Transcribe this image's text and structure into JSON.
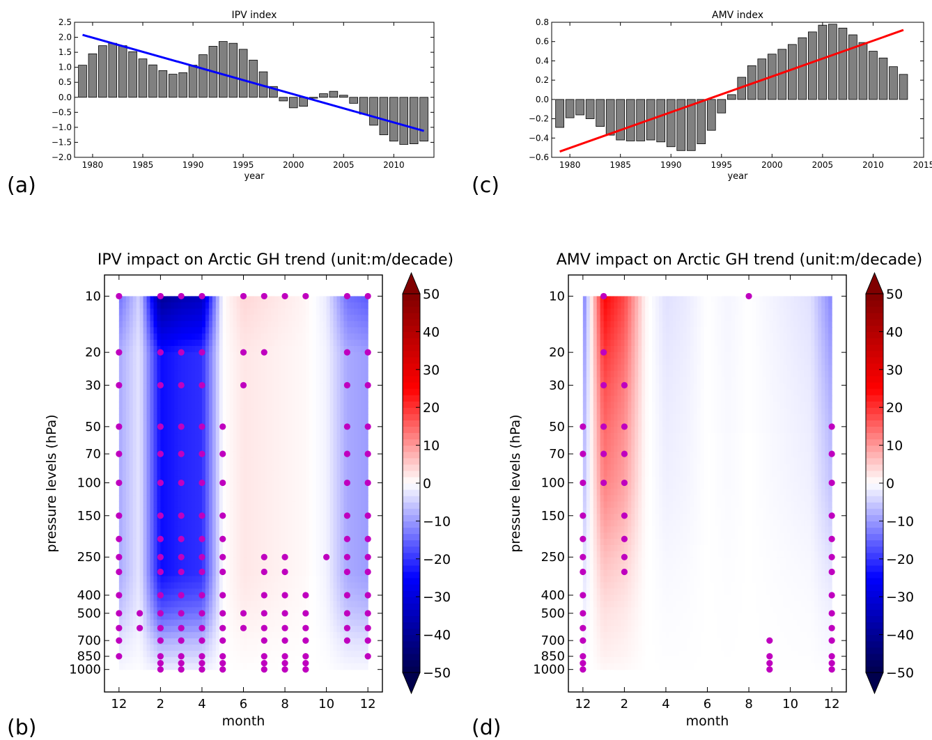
{
  "chart_data": [
    {
      "type": "bar",
      "panel_label": "(a)",
      "title": "IPV index",
      "xlabel": "year",
      "ylabel": "",
      "xlim": [
        1978.2,
        2014
      ],
      "ylim": [
        -2.0,
        2.5
      ],
      "xticks": [
        1980,
        1985,
        1990,
        1995,
        2000,
        2005,
        2010
      ],
      "yticks": [
        -2.0,
        -1.5,
        -1.0,
        -0.5,
        0.0,
        0.5,
        1.0,
        1.5,
        2.0,
        2.5
      ],
      "x": [
        1979,
        1980,
        1981,
        1982,
        1983,
        1984,
        1985,
        1986,
        1987,
        1988,
        1989,
        1990,
        1991,
        1992,
        1993,
        1994,
        1995,
        1996,
        1997,
        1998,
        1999,
        2000,
        2001,
        2002,
        2003,
        2004,
        2005,
        2006,
        2007,
        2008,
        2009,
        2010,
        2011,
        2012,
        2013
      ],
      "values": [
        1.07,
        1.45,
        1.72,
        1.8,
        1.72,
        1.52,
        1.28,
        1.08,
        0.89,
        0.77,
        0.82,
        1.07,
        1.42,
        1.7,
        1.86,
        1.8,
        1.6,
        1.24,
        0.85,
        0.36,
        -0.12,
        -0.35,
        -0.3,
        -0.03,
        0.12,
        0.2,
        0.07,
        -0.2,
        -0.56,
        -0.93,
        -1.25,
        -1.46,
        -1.57,
        -1.55,
        -1.46
      ],
      "bar_color": "#808080",
      "trend": {
        "x": [
          1979,
          2013
        ],
        "y": [
          2.08,
          -1.12
        ],
        "color": "#0000ff"
      },
      "grid": false
    },
    {
      "type": "bar",
      "panel_label": "(c)",
      "title": "AMV index",
      "xlabel": "year",
      "ylabel": "",
      "xlim": [
        1978.2,
        2015
      ],
      "ylim": [
        -0.6,
        0.8
      ],
      "xticks": [
        1980,
        1985,
        1990,
        1995,
        2000,
        2005,
        2010,
        2015
      ],
      "yticks": [
        -0.6,
        -0.4,
        -0.2,
        0.0,
        0.2,
        0.4,
        0.6,
        0.8
      ],
      "x": [
        1979,
        1980,
        1981,
        1982,
        1983,
        1984,
        1985,
        1986,
        1987,
        1988,
        1989,
        1990,
        1991,
        1992,
        1993,
        1994,
        1995,
        1996,
        1997,
        1998,
        1999,
        2000,
        2001,
        2002,
        2003,
        2004,
        2005,
        2006,
        2007,
        2008,
        2009,
        2010,
        2011,
        2012,
        2013
      ],
      "values": [
        -0.29,
        -0.19,
        -0.16,
        -0.2,
        -0.28,
        -0.37,
        -0.42,
        -0.43,
        -0.43,
        -0.42,
        -0.44,
        -0.49,
        -0.53,
        -0.53,
        -0.46,
        -0.32,
        -0.14,
        0.05,
        0.23,
        0.35,
        0.42,
        0.47,
        0.52,
        0.57,
        0.64,
        0.7,
        0.77,
        0.78,
        0.74,
        0.67,
        0.59,
        0.5,
        0.43,
        0.34,
        0.26
      ],
      "bar_color": "#808080",
      "trend": {
        "x": [
          1979,
          2013
        ],
        "y": [
          -0.54,
          0.72
        ],
        "color": "#ff0000"
      },
      "grid": false
    },
    {
      "type": "heatmap",
      "panel_label": "(b)",
      "title": "IPV impact on Arctic GH trend (unit:m/decade)",
      "xlabel": "month",
      "ylabel": "pressure levels (hPa)",
      "xlim": [
        -0.7,
        12.7
      ],
      "ylim_logp": [
        1320,
        7.7
      ],
      "xtick_positions": [
        0,
        2,
        4,
        6,
        8,
        10,
        12
      ],
      "xtick_labels": [
        "12",
        "2",
        "4",
        "6",
        "8",
        "10",
        "12"
      ],
      "ytick_levels": [
        10,
        20,
        30,
        50,
        70,
        100,
        150,
        250,
        400,
        500,
        700,
        850,
        1000
      ],
      "months": [
        0,
        1,
        2,
        3,
        4,
        5,
        6,
        7,
        8,
        9,
        10,
        11,
        12
      ],
      "levels": [
        10,
        20,
        30,
        50,
        70,
        100,
        150,
        200,
        250,
        300,
        400,
        500,
        600,
        700,
        850,
        925,
        1000
      ],
      "column_profile": {
        "shape": [
          -1.0,
          -0.6,
          -0.6,
          -0.6,
          -0.6,
          -0.6,
          -0.6,
          -0.6,
          -0.6,
          -0.6,
          -0.5,
          -0.4,
          -0.3,
          -0.2,
          -0.12,
          -0.08,
          -0.05
        ],
        "amplitude": [
          -14,
          -4,
          -40,
          -36,
          -34,
          0,
          4,
          3,
          2,
          1,
          -2,
          -14,
          -16
        ]
      },
      "colorbar": {
        "min": -50,
        "max": 50,
        "ticks": [
          -50,
          -40,
          -30,
          -20,
          -10,
          0,
          10,
          20,
          30,
          40,
          50
        ],
        "colormap": "seismic",
        "extend": "both"
      },
      "significant_points": [
        [
          0,
          10
        ],
        [
          0,
          20
        ],
        [
          0,
          30
        ],
        [
          0,
          50
        ],
        [
          0,
          70
        ],
        [
          0,
          100
        ],
        [
          0,
          150
        ],
        [
          0,
          200
        ],
        [
          0,
          250
        ],
        [
          0,
          300
        ],
        [
          0,
          400
        ],
        [
          0,
          500
        ],
        [
          0,
          600
        ],
        [
          0,
          700
        ],
        [
          0,
          850
        ],
        [
          1,
          500
        ],
        [
          1,
          600
        ],
        [
          2,
          10
        ],
        [
          2,
          20
        ],
        [
          2,
          30
        ],
        [
          2,
          50
        ],
        [
          2,
          70
        ],
        [
          2,
          100
        ],
        [
          2,
          150
        ],
        [
          2,
          200
        ],
        [
          2,
          250
        ],
        [
          2,
          300
        ],
        [
          2,
          400
        ],
        [
          2,
          500
        ],
        [
          2,
          600
        ],
        [
          2,
          700
        ],
        [
          2,
          850
        ],
        [
          2,
          925
        ],
        [
          2,
          1000
        ],
        [
          3,
          10
        ],
        [
          3,
          20
        ],
        [
          3,
          30
        ],
        [
          3,
          50
        ],
        [
          3,
          70
        ],
        [
          3,
          100
        ],
        [
          3,
          150
        ],
        [
          3,
          200
        ],
        [
          3,
          250
        ],
        [
          3,
          300
        ],
        [
          3,
          400
        ],
        [
          3,
          500
        ],
        [
          3,
          600
        ],
        [
          3,
          700
        ],
        [
          3,
          850
        ],
        [
          3,
          925
        ],
        [
          3,
          1000
        ],
        [
          4,
          10
        ],
        [
          4,
          20
        ],
        [
          4,
          30
        ],
        [
          4,
          50
        ],
        [
          4,
          70
        ],
        [
          4,
          100
        ],
        [
          4,
          150
        ],
        [
          4,
          200
        ],
        [
          4,
          250
        ],
        [
          4,
          300
        ],
        [
          4,
          400
        ],
        [
          4,
          500
        ],
        [
          4,
          600
        ],
        [
          4,
          700
        ],
        [
          4,
          850
        ],
        [
          4,
          925
        ],
        [
          4,
          1000
        ],
        [
          5,
          50
        ],
        [
          5,
          70
        ],
        [
          5,
          100
        ],
        [
          5,
          150
        ],
        [
          5,
          200
        ],
        [
          5,
          250
        ],
        [
          5,
          300
        ],
        [
          5,
          400
        ],
        [
          5,
          500
        ],
        [
          5,
          600
        ],
        [
          5,
          700
        ],
        [
          5,
          850
        ],
        [
          5,
          925
        ],
        [
          5,
          1000
        ],
        [
          6,
          10
        ],
        [
          6,
          20
        ],
        [
          6,
          30
        ],
        [
          6,
          500
        ],
        [
          6,
          600
        ],
        [
          7,
          10
        ],
        [
          7,
          20
        ],
        [
          7,
          250
        ],
        [
          7,
          300
        ],
        [
          7,
          400
        ],
        [
          7,
          500
        ],
        [
          7,
          600
        ],
        [
          7,
          700
        ],
        [
          7,
          850
        ],
        [
          7,
          925
        ],
        [
          7,
          1000
        ],
        [
          8,
          10
        ],
        [
          8,
          250
        ],
        [
          8,
          300
        ],
        [
          8,
          400
        ],
        [
          8,
          500
        ],
        [
          8,
          600
        ],
        [
          8,
          700
        ],
        [
          8,
          850
        ],
        [
          8,
          925
        ],
        [
          8,
          1000
        ],
        [
          9,
          10
        ],
        [
          9,
          400
        ],
        [
          9,
          500
        ],
        [
          9,
          600
        ],
        [
          9,
          700
        ],
        [
          9,
          850
        ],
        [
          9,
          925
        ],
        [
          9,
          1000
        ],
        [
          10,
          250
        ],
        [
          11,
          10
        ],
        [
          11,
          20
        ],
        [
          11,
          30
        ],
        [
          11,
          50
        ],
        [
          11,
          70
        ],
        [
          11,
          100
        ],
        [
          11,
          150
        ],
        [
          11,
          200
        ],
        [
          11,
          250
        ],
        [
          11,
          300
        ],
        [
          11,
          400
        ],
        [
          11,
          500
        ],
        [
          11,
          600
        ],
        [
          11,
          700
        ],
        [
          12,
          10
        ],
        [
          12,
          20
        ],
        [
          12,
          30
        ],
        [
          12,
          50
        ],
        [
          12,
          70
        ],
        [
          12,
          100
        ],
        [
          12,
          150
        ],
        [
          12,
          200
        ],
        [
          12,
          250
        ],
        [
          12,
          300
        ],
        [
          12,
          400
        ],
        [
          12,
          500
        ],
        [
          12,
          600
        ],
        [
          12,
          700
        ],
        [
          12,
          850
        ]
      ],
      "point_color": "#bf00bf"
    },
    {
      "type": "heatmap",
      "panel_label": "(d)",
      "title": "AMV impact on Arctic GH trend (unit:m/decade)",
      "xlabel": "month",
      "ylabel": "pressure levels (hPa)",
      "xlim": [
        -0.7,
        12.7
      ],
      "ylim_logp": [
        1320,
        7.7
      ],
      "xtick_positions": [
        0,
        2,
        4,
        6,
        8,
        10,
        12
      ],
      "xtick_labels": [
        "12",
        "2",
        "4",
        "6",
        "8",
        "10",
        "12"
      ],
      "ytick_levels": [
        10,
        20,
        30,
        50,
        70,
        100,
        150,
        250,
        400,
        500,
        700,
        850,
        1000
      ],
      "months": [
        0,
        1,
        2,
        3,
        4,
        5,
        6,
        7,
        8,
        9,
        10,
        11,
        12
      ],
      "levels": [
        10,
        20,
        30,
        50,
        70,
        100,
        150,
        200,
        250,
        300,
        400,
        500,
        600,
        700,
        850,
        925,
        1000
      ],
      "column_profile": {
        "shape": [
          -1.0,
          -0.8,
          -0.7,
          -0.6,
          -0.55,
          -0.5,
          -0.4,
          -0.32,
          -0.26,
          -0.22,
          -0.16,
          -0.12,
          -0.1,
          -0.08,
          -0.06,
          -0.04,
          -0.03
        ],
        "amplitude": [
          -14,
          25,
          18,
          1,
          -3,
          -2,
          0,
          -1,
          0,
          -1,
          -2,
          -3,
          -12
        ]
      },
      "colorbar": {
        "min": -50,
        "max": 50,
        "ticks": [
          -50,
          -40,
          -30,
          -20,
          -10,
          0,
          10,
          20,
          30,
          40,
          50
        ],
        "colormap": "seismic",
        "extend": "both"
      },
      "significant_points": [
        [
          0,
          50
        ],
        [
          0,
          70
        ],
        [
          0,
          100
        ],
        [
          0,
          150
        ],
        [
          0,
          200
        ],
        [
          0,
          250
        ],
        [
          0,
          300
        ],
        [
          0,
          400
        ],
        [
          0,
          500
        ],
        [
          0,
          600
        ],
        [
          0,
          700
        ],
        [
          0,
          850
        ],
        [
          0,
          925
        ],
        [
          0,
          1000
        ],
        [
          1,
          10
        ],
        [
          1,
          20
        ],
        [
          1,
          30
        ],
        [
          1,
          50
        ],
        [
          1,
          70
        ],
        [
          1,
          100
        ],
        [
          2,
          30
        ],
        [
          2,
          50
        ],
        [
          2,
          70
        ],
        [
          2,
          100
        ],
        [
          2,
          150
        ],
        [
          2,
          200
        ],
        [
          2,
          250
        ],
        [
          2,
          300
        ],
        [
          8,
          10
        ],
        [
          9,
          700
        ],
        [
          9,
          850
        ],
        [
          9,
          925
        ],
        [
          9,
          1000
        ],
        [
          12,
          50
        ],
        [
          12,
          70
        ],
        [
          12,
          100
        ],
        [
          12,
          150
        ],
        [
          12,
          200
        ],
        [
          12,
          250
        ],
        [
          12,
          300
        ],
        [
          12,
          400
        ],
        [
          12,
          500
        ],
        [
          12,
          600
        ],
        [
          12,
          700
        ],
        [
          12,
          850
        ],
        [
          12,
          925
        ],
        [
          12,
          1000
        ]
      ],
      "point_color": "#bf00bf"
    }
  ]
}
